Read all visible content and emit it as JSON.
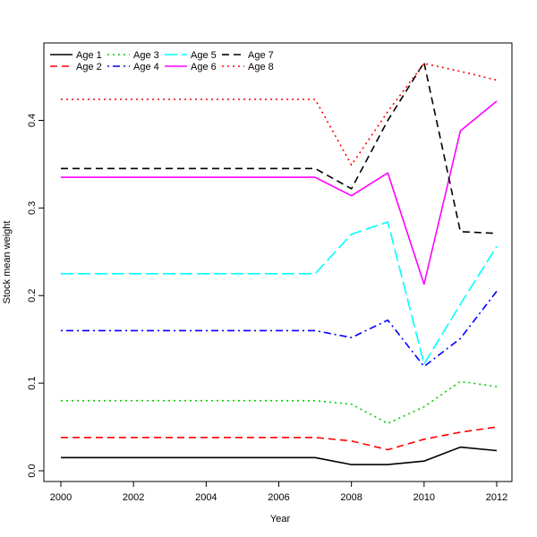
{
  "chart_data": {
    "type": "line",
    "title": "",
    "xlabel": "Year",
    "ylabel": "Stock mean weight",
    "xlim": [
      2000,
      2012
    ],
    "ylim": [
      0,
      0.47
    ],
    "xticks": [
      2000,
      2002,
      2004,
      2006,
      2008,
      2010,
      2012
    ],
    "yticks": [
      0.0,
      0.1,
      0.2,
      0.3,
      0.4
    ],
    "ytick_labels": [
      "0.0",
      "0.1",
      "0.2",
      "0.3",
      "0.4"
    ],
    "grid": false,
    "legend_position": "top-left",
    "x": [
      2000,
      2001,
      2002,
      2003,
      2004,
      2005,
      2006,
      2007,
      2008,
      2009,
      2010,
      2011,
      2012
    ],
    "series": [
      {
        "name": "Age 1",
        "color": "#000000",
        "dash": "solid",
        "values": [
          0.015,
          0.015,
          0.015,
          0.015,
          0.015,
          0.015,
          0.015,
          0.015,
          0.007,
          0.007,
          0.011,
          0.027,
          0.023
        ]
      },
      {
        "name": "Age 2",
        "color": "#ff0000",
        "dash": "dashed",
        "values": [
          0.038,
          0.038,
          0.038,
          0.038,
          0.038,
          0.038,
          0.038,
          0.038,
          0.034,
          0.024,
          0.036,
          0.044,
          0.05
        ]
      },
      {
        "name": "Age 3",
        "color": "#00cd00",
        "dash": "dotted",
        "values": [
          0.08,
          0.08,
          0.08,
          0.08,
          0.08,
          0.08,
          0.08,
          0.08,
          0.076,
          0.054,
          0.073,
          0.102,
          0.096
        ]
      },
      {
        "name": "Age 4",
        "color": "#0000ff",
        "dash": "dotdash",
        "values": [
          0.16,
          0.16,
          0.16,
          0.16,
          0.16,
          0.16,
          0.16,
          0.16,
          0.152,
          0.172,
          0.119,
          0.151,
          0.205
        ]
      },
      {
        "name": "Age 5",
        "color": "#00ffff",
        "dash": "longdash",
        "values": [
          0.225,
          0.225,
          0.225,
          0.225,
          0.225,
          0.225,
          0.225,
          0.225,
          0.27,
          0.284,
          0.122,
          0.19,
          0.256
        ]
      },
      {
        "name": "Age 6",
        "color": "#ff00ff",
        "dash": "solid",
        "values": [
          0.335,
          0.335,
          0.335,
          0.335,
          0.335,
          0.335,
          0.335,
          0.335,
          0.314,
          0.34,
          0.213,
          0.388,
          0.422
        ]
      },
      {
        "name": "Age 7",
        "color": "#000000",
        "dash": "dashed",
        "values": [
          0.345,
          0.345,
          0.345,
          0.345,
          0.345,
          0.345,
          0.345,
          0.345,
          0.322,
          0.4,
          0.466,
          0.273,
          0.271
        ]
      },
      {
        "name": "Age 8",
        "color": "#ff0000",
        "dash": "dotted",
        "values": [
          0.424,
          0.424,
          0.424,
          0.424,
          0.424,
          0.424,
          0.424,
          0.424,
          0.349,
          0.41,
          0.465,
          0.456,
          0.446
        ]
      }
    ]
  }
}
